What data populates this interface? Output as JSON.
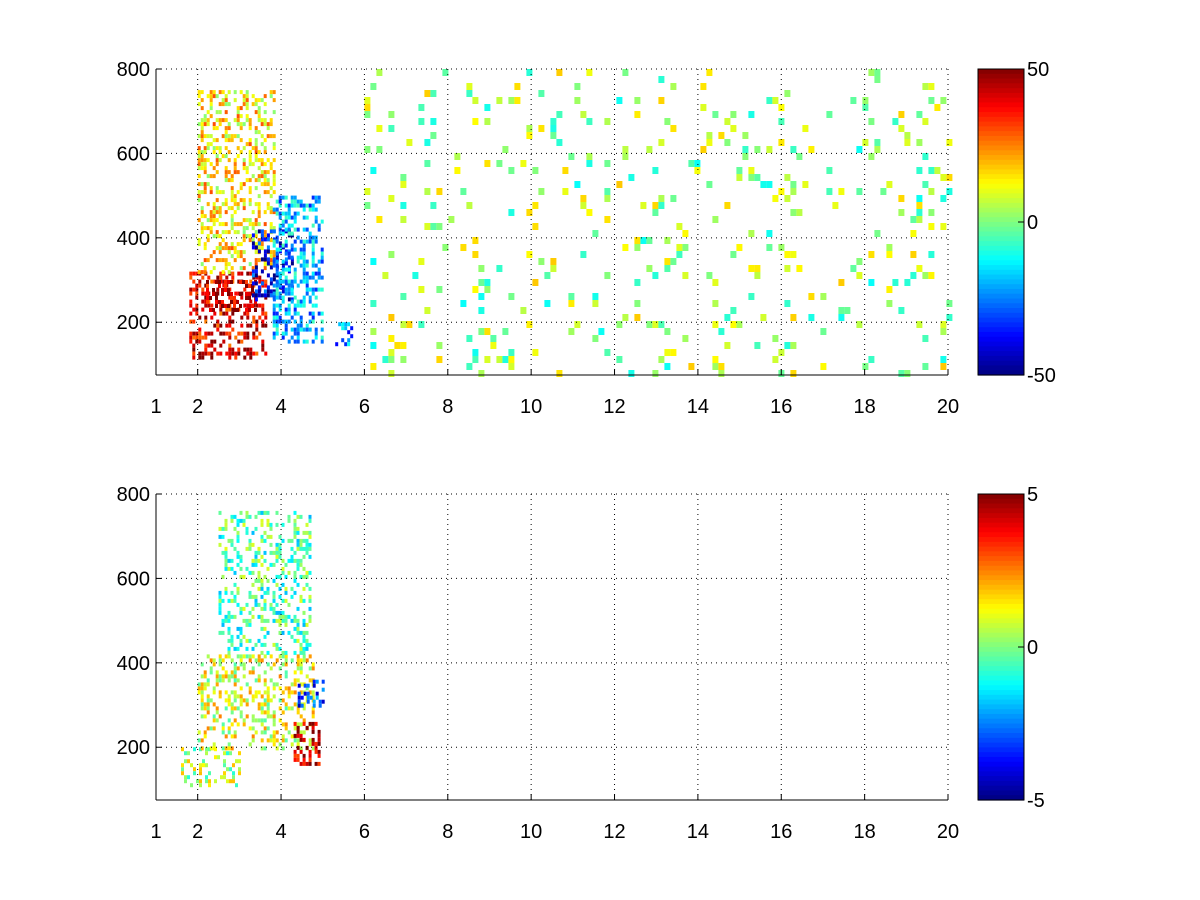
{
  "chart_data": [
    {
      "type": "heatmap",
      "title": "",
      "xlabel": "",
      "ylabel": "",
      "xlim": [
        1,
        20
      ],
      "ylim": [
        75,
        800
      ],
      "grid": true,
      "colormap": "jet",
      "x_ticks": [
        1,
        2,
        4,
        6,
        8,
        10,
        12,
        14,
        16,
        18,
        20
      ],
      "x_tick_labels": [
        "1",
        "2",
        "4",
        "6",
        "8",
        "10",
        "12",
        "14",
        "16",
        "18",
        "20"
      ],
      "y_ticks": [
        200,
        400,
        600,
        800
      ],
      "y_tick_labels": [
        "200",
        "400",
        "600",
        "800"
      ],
      "colorbar": {
        "range": [
          -50,
          50
        ],
        "tick_labels": [
          "50",
          "0",
          "-50"
        ],
        "tick_values": [
          50,
          0,
          -50
        ]
      },
      "features": [
        {
          "x": [
            1.8,
            3.6
          ],
          "y": [
            120,
            320
          ],
          "value": 40
        },
        {
          "x": [
            2.2,
            3.4
          ],
          "y": [
            230,
            300
          ],
          "value": 45
        },
        {
          "x": [
            2.0,
            3.8
          ],
          "y": [
            320,
            750
          ],
          "value": 15
        },
        {
          "x": [
            3.3,
            4.3
          ],
          "y": [
            250,
            420
          ],
          "value": -38
        },
        {
          "x": [
            3.8,
            5.0
          ],
          "y": [
            150,
            500
          ],
          "value": -20
        },
        {
          "x": [
            5.3,
            5.8
          ],
          "y": [
            150,
            200
          ],
          "value": -25
        },
        {
          "x": [
            6.0,
            20.0
          ],
          "y": [
            75,
            800
          ],
          "value": 3
        }
      ]
    },
    {
      "type": "heatmap",
      "title": "",
      "xlabel": "",
      "ylabel": "",
      "xlim": [
        1,
        20
      ],
      "ylim": [
        75,
        800
      ],
      "grid": true,
      "colormap": "jet",
      "x_ticks": [
        1,
        2,
        4,
        6,
        8,
        10,
        12,
        14,
        16,
        18,
        20
      ],
      "x_tick_labels": [
        "1",
        "2",
        "4",
        "6",
        "8",
        "10",
        "12",
        "14",
        "16",
        "18",
        "20"
      ],
      "y_ticks": [
        200,
        400,
        600,
        800
      ],
      "y_tick_labels": [
        "200",
        "400",
        "600",
        "800"
      ],
      "colorbar": {
        "range": [
          -5,
          5
        ],
        "tick_labels": [
          "5",
          "0",
          "-5"
        ],
        "tick_values": [
          5,
          0,
          -5
        ]
      },
      "features": [
        {
          "x": [
            1.6,
            3.0
          ],
          "y": [
            110,
            200
          ],
          "value": 0.5
        },
        {
          "x": [
            2.0,
            4.8
          ],
          "y": [
            200,
            420
          ],
          "value": 1
        },
        {
          "x": [
            2.5,
            4.7
          ],
          "y": [
            420,
            760
          ],
          "value": -0.5
        },
        {
          "x": [
            4.3,
            4.9
          ],
          "y": [
            160,
            260
          ],
          "value": 4.5
        },
        {
          "x": [
            4.4,
            5.0
          ],
          "y": [
            300,
            360
          ],
          "value": -3
        }
      ]
    }
  ]
}
